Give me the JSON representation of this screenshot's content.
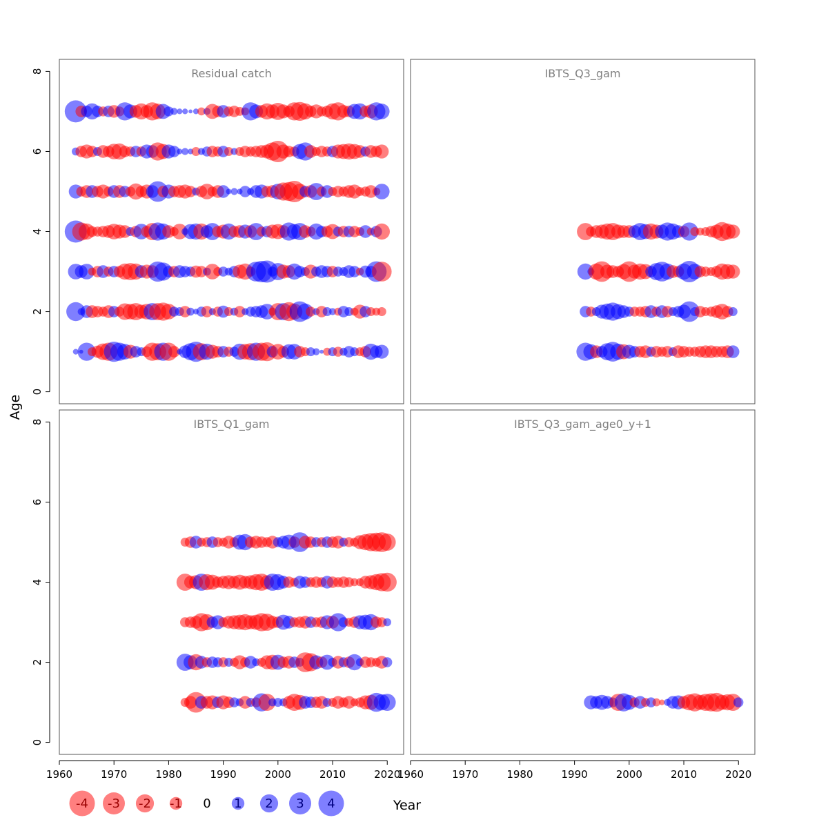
{
  "chart_data": {
    "type": "bubble",
    "xlabel": "Year",
    "ylabel": "Age",
    "xlim": [
      1960,
      2023
    ],
    "ylim": [
      -0.3,
      8.3
    ],
    "x_ticks": [
      "1960",
      "1970",
      "1980",
      "1990",
      "2000",
      "2010",
      "2020"
    ],
    "y_ticks": [
      "0",
      "2",
      "4",
      "6",
      "8"
    ],
    "colors": {
      "negative": "#ff0000",
      "positive": "#0000ff"
    },
    "legend": {
      "labels": [
        "-4",
        "-3",
        "-2",
        "-1",
        "0",
        "1",
        "2",
        "3",
        "4"
      ],
      "values": [
        -4,
        -3,
        -2,
        -1,
        0,
        1,
        2,
        3,
        4
      ]
    },
    "panels": [
      {
        "name": "Residual catch",
        "years": [
          1963,
          2019
        ],
        "ages": [
          1,
          2,
          3,
          4,
          5,
          6,
          7
        ],
        "residuals": {
          "1": [
            0.2,
            0.1,
            2.0,
            -0.5,
            -0.9,
            -1.7,
            -2.0,
            2.5,
            2.0,
            1.5,
            -1.2,
            0.8,
            0.5,
            -0.7,
            -2.0,
            -1.8,
            2.0,
            -2.0,
            -0.8,
            0.2,
            1.0,
            1.8,
            2.5,
            -1.8,
            1.6,
            -1.2,
            -0.8,
            0.8,
            -0.6,
            0.6,
            1.6,
            -1.5,
            -1.8,
            2.0,
            -2.0,
            -2.2,
            0.8,
            -1.5,
            -0.8,
            1.4,
            1.5,
            -0.8,
            -0.5,
            0.5,
            0.3,
            0.1,
            -0.4,
            0.5,
            -0.6,
            0.4,
            0.8,
            0.5,
            -0.5,
            -0.8,
            1.6,
            1.0,
            1.2
          ],
          "2": [
            2.2,
            0.3,
            1.0,
            -1.0,
            -0.8,
            -0.6,
            -1.0,
            0.8,
            -0.6,
            -1.7,
            -1.5,
            -1.8,
            -1.2,
            -1.5,
            1.8,
            -1.8,
            -2.0,
            -1.5,
            0.6,
            0.5,
            -0.8,
            0.4,
            0.2,
            0.6,
            -0.8,
            0.3,
            -0.6,
            0.9,
            -0.5,
            0.4,
            -0.8,
            0.3,
            0.6,
            0.8,
            1.0,
            1.5,
            -0.4,
            -1.8,
            1.8,
            -2.2,
            -1.6,
            2.6,
            1.6,
            -0.6,
            0.3,
            -0.8,
            0.5,
            0.3,
            -0.4,
            0.8,
            0.5,
            -0.4,
            -1.2,
            0.8,
            -0.5,
            -0.4,
            -0.5
          ],
          "3": [
            1.5,
            1.0,
            1.5,
            -0.4,
            -0.8,
            1.0,
            -0.6,
            0.8,
            -0.8,
            -1.6,
            -1.8,
            -1.6,
            1.0,
            -1.2,
            -1.0,
            2.5,
            2.0,
            0.8,
            -0.8,
            1.0,
            0.8,
            0.6,
            -0.9,
            -0.8,
            0.4,
            -1.5,
            -0.5,
            0.6,
            0.4,
            0.8,
            -1.2,
            -1.6,
            -0.6,
            2.4,
            2.8,
            3.0,
            0.6,
            1.8,
            -1.2,
            -1.0,
            1.6,
            0.8,
            0.5,
            -1.2,
            0.6,
            1.0,
            0.8,
            -0.8,
            0.6,
            0.5,
            1.0,
            0.8,
            -0.4,
            0.9,
            0.8,
            2.6,
            -2.4
          ],
          "4": [
            3.0,
            -2.0,
            -1.6,
            -0.7,
            -0.6,
            -0.8,
            -1.0,
            -1.5,
            -1.2,
            -1.0,
            0.5,
            -0.8,
            1.5,
            -0.8,
            -1.8,
            2.0,
            1.6,
            -1.0,
            -0.5,
            -1.5,
            0.3,
            1.4,
            1.6,
            -1.6,
            1.0,
            1.8,
            -0.8,
            -1.2,
            1.6,
            -0.8,
            -1.0,
            1.2,
            -1.0,
            1.8,
            -0.6,
            0.8,
            -1.2,
            -1.4,
            -1.0,
            2.0,
            1.4,
            1.8,
            -1.0,
            -0.6,
            1.6,
            0.8,
            -0.8,
            -1.4,
            0.6,
            -0.8,
            0.8,
            -0.8,
            -0.5,
            1.0,
            -0.4,
            0.8,
            -1.6
          ],
          "5": [
            1.2,
            -0.6,
            -1.0,
            1.0,
            -0.8,
            -1.2,
            -0.6,
            1.0,
            -1.0,
            0.8,
            -0.6,
            -1.6,
            -0.8,
            -1.2,
            1.0,
            2.6,
            -0.8,
            1.2,
            -0.8,
            -1.0,
            -1.2,
            -0.8,
            0.4,
            -0.8,
            -1.5,
            -0.6,
            -1.0,
            1.0,
            0.2,
            0.3,
            0.2,
            0.8,
            0.3,
            1.0,
            1.2,
            -0.8,
            -1.0,
            1.5,
            -2.0,
            -2.2,
            -2.8,
            -1.5,
            0.8,
            -1.0,
            1.8,
            -0.6,
            1.0,
            -0.5,
            -0.8,
            -0.6,
            -1.0,
            -1.2,
            -0.5,
            -0.6,
            -1.0,
            -0.4,
            1.5
          ],
          "6": [
            0.4,
            -0.8,
            -1.2,
            -0.8,
            0.5,
            -1.0,
            -0.8,
            -1.5,
            -1.6,
            -0.8,
            -0.6,
            0.8,
            -0.6,
            1.2,
            1.0,
            -2.0,
            -1.4,
            1.2,
            0.8,
            0.2,
            0.3,
            0.2,
            -0.5,
            0.3,
            0.6,
            -0.8,
            -0.6,
            0.8,
            -0.5,
            0.3,
            -0.5,
            -0.8,
            -0.6,
            -0.8,
            -1.0,
            -1.2,
            -2.0,
            -2.8,
            -1.2,
            -0.8,
            -0.6,
            1.4,
            2.0,
            -1.0,
            -0.5,
            -0.8,
            -0.6,
            0.8,
            -1.2,
            -1.4,
            -1.6,
            -1.4,
            -1.0,
            0.6,
            -1.0,
            -0.8,
            -1.2
          ],
          "7": [
            3.0,
            -0.8,
            0.8,
            1.6,
            0.8,
            -0.6,
            0.8,
            -1.0,
            -0.6,
            2.0,
            1.2,
            -1.0,
            -1.6,
            -1.0,
            -2.0,
            -1.5,
            1.4,
            0.6,
            0.3,
            0.2,
            0.2,
            0.1,
            0.2,
            -0.4,
            0.3,
            -1.4,
            -0.8,
            1.0,
            -0.6,
            -0.8,
            -0.5,
            -0.4,
            2.0,
            1.2,
            -1.0,
            -1.6,
            -1.2,
            -1.8,
            -1.2,
            -0.8,
            -2.0,
            -2.2,
            -1.6,
            -0.8,
            -1.2,
            -0.6,
            -0.8,
            -1.6,
            -2.0,
            -1.0,
            -0.8,
            1.4,
            1.6,
            -0.8,
            -1.2,
            2.0,
            1.5
          ]
        }
      },
      {
        "name": "IBTS_Q3_gam",
        "years": [
          1992,
          2019
        ],
        "ages": [
          1,
          2,
          3,
          4
        ],
        "residuals": {
          "1": [
            2.0,
            1.4,
            -1.0,
            0.8,
            1.8,
            2.4,
            1.6,
            -1.4,
            1.2,
            0.8,
            -0.8,
            -1.0,
            0.6,
            -0.8,
            -0.6,
            -0.8,
            0.5,
            -1.0,
            -0.8,
            -0.6,
            -0.6,
            -0.8,
            -1.0,
            -1.0,
            -0.8,
            -0.8,
            -1.0,
            1.0
          ],
          "2": [
            0.8,
            -0.6,
            0.5,
            1.2,
            1.6,
            2.0,
            1.4,
            1.0,
            0.6,
            -0.6,
            -0.6,
            -0.8,
            1.0,
            -0.6,
            1.0,
            -0.8,
            0.5,
            0.8,
            1.2,
            2.6,
            0.5,
            -0.8,
            -0.5,
            -0.6,
            -1.0,
            -1.5,
            -0.8,
            0.5
          ],
          "3": [
            1.6,
            0.3,
            -1.6,
            -2.6,
            -1.2,
            -1.0,
            -0.8,
            -1.4,
            -2.6,
            -1.2,
            -1.6,
            -1.4,
            0.8,
            1.8,
            2.4,
            1.6,
            -1.0,
            -0.8,
            1.6,
            2.8,
            1.5,
            -0.8,
            -0.6,
            -0.5,
            -0.8,
            -1.6,
            -1.4,
            -1.2
          ],
          "4": [
            -1.8,
            -0.6,
            -1.0,
            -1.2,
            -1.6,
            -1.8,
            -1.2,
            -1.0,
            -1.0,
            1.0,
            1.8,
            1.4,
            -1.6,
            -1.2,
            1.2,
            2.0,
            1.6,
            1.0,
            -0.8,
            2.0,
            -0.5,
            -0.4,
            -0.5,
            -0.8,
            -1.2,
            -2.2,
            -1.6,
            -1.2
          ]
        }
      },
      {
        "name": "IBTS_Q1_gam",
        "years": [
          1983,
          2020
        ],
        "ages": [
          1,
          2,
          3,
          4,
          5
        ],
        "residuals": {
          "1": [
            -0.5,
            -1.0,
            -2.6,
            1.0,
            -1.0,
            -1.2,
            0.8,
            -1.2,
            -0.8,
            0.6,
            0.4,
            -1.0,
            0.5,
            -0.6,
            2.0,
            -1.8,
            0.4,
            0.5,
            0.4,
            -1.0,
            -1.8,
            -1.4,
            1.0,
            0.8,
            -0.8,
            -1.0,
            0.5,
            -0.5,
            -1.0,
            -0.6,
            -1.0,
            -0.4,
            -0.6,
            -1.2,
            -1.4,
            2.2,
            1.6,
            1.8
          ],
          "2": [
            1.8,
            1.2,
            -1.6,
            1.0,
            -0.6,
            0.8,
            0.6,
            -0.6,
            0.5,
            -0.5,
            -1.2,
            -0.6,
            1.0,
            0.4,
            -0.5,
            -1.2,
            -1.4,
            1.4,
            -0.8,
            -1.0,
            0.8,
            0.5,
            -2.4,
            -2.0,
            1.2,
            -0.8,
            1.4,
            0.5,
            -1.0,
            0.6,
            -0.8,
            1.6,
            0.4,
            -0.8,
            -0.6,
            -0.5,
            -1.0,
            0.6
          ],
          "3": [
            -0.6,
            -0.8,
            -1.0,
            -2.0,
            -1.6,
            0.8,
            1.2,
            -0.6,
            -1.0,
            -1.2,
            -1.4,
            -1.6,
            -1.2,
            -1.4,
            -2.0,
            -1.8,
            -1.0,
            -0.8,
            1.4,
            1.0,
            -0.6,
            -0.8,
            -1.0,
            0.8,
            -0.6,
            -0.8,
            1.2,
            -1.0,
            2.0,
            0.6,
            -0.5,
            -0.8,
            1.2,
            1.4,
            1.6,
            -0.8,
            -0.6,
            0.4
          ],
          "4": [
            -1.8,
            -1.0,
            -1.2,
            1.8,
            -1.6,
            -1.4,
            -0.8,
            -1.0,
            -1.2,
            -1.0,
            -1.4,
            -1.0,
            -1.2,
            -1.6,
            -1.8,
            -1.2,
            1.8,
            1.6,
            1.0,
            -0.8,
            -0.5,
            1.0,
            0.8,
            -0.6,
            -0.8,
            -0.6,
            1.0,
            -0.8,
            -0.6,
            -0.8,
            -0.6,
            -0.4,
            -0.4,
            -1.0,
            -1.2,
            -1.6,
            -2.0,
            -2.2
          ],
          "5": [
            -0.5,
            -0.8,
            1.0,
            -0.5,
            -0.6,
            0.8,
            -0.6,
            -0.5,
            -1.0,
            -0.6,
            1.4,
            1.6,
            -0.8,
            -1.0,
            -0.8,
            -0.6,
            -1.0,
            0.6,
            1.0,
            1.4,
            -0.8,
            2.4,
            -1.0,
            -0.8,
            0.6,
            -0.6,
            0.8,
            -0.8,
            -1.0,
            0.5,
            -0.6,
            -0.5,
            -1.2,
            -1.6,
            -2.0,
            -2.2,
            -2.4,
            -1.8
          ]
        }
      },
      {
        "name": "IBTS_Q3_gam_age0_y+1",
        "years": [
          1993,
          2020
        ],
        "ages": [
          1
        ],
        "residuals": {
          "1": [
            1.2,
            1.0,
            1.4,
            1.0,
            0.6,
            -1.8,
            2.0,
            1.4,
            -0.6,
            1.0,
            -0.5,
            0.6,
            -0.4,
            -0.2,
            0.3,
            1.0,
            1.2,
            -1.0,
            -1.6,
            -2.0,
            -1.4,
            -1.8,
            -2.0,
            -2.2,
            -1.4,
            -1.6,
            -1.8,
            0.6
          ]
        }
      }
    ]
  }
}
